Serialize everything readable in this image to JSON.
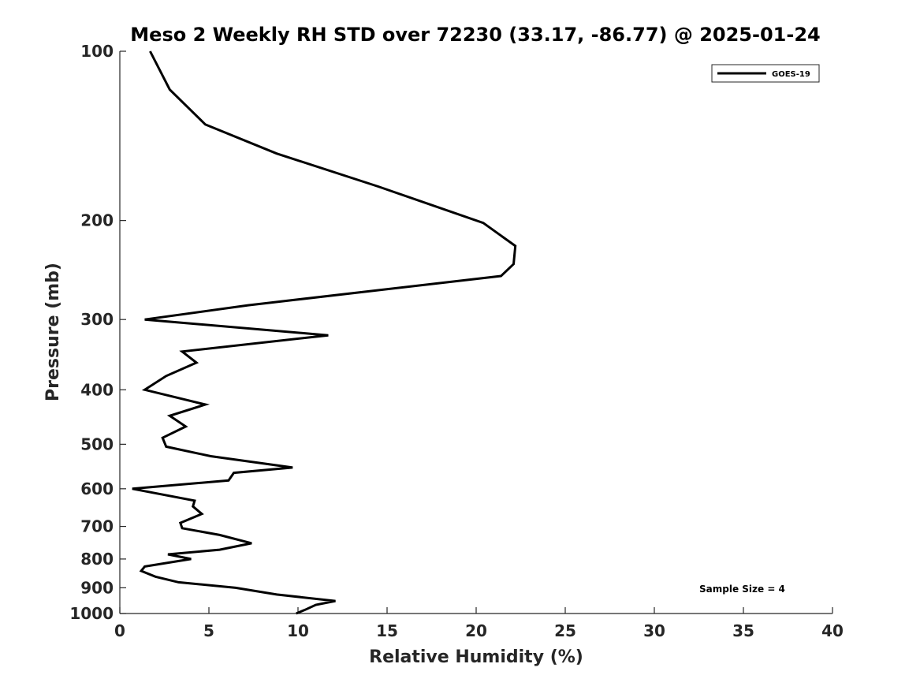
{
  "chart_data": {
    "type": "line",
    "title": "Meso 2 Weekly RH STD over 72230 (33.17, -86.77) @ 2025-01-24",
    "xlabel": "Relative Humidity (%)",
    "ylabel": "Pressure (mb)",
    "xlim": [
      0,
      40
    ],
    "ylim": [
      100,
      1000
    ],
    "yscale": "log",
    "y_reversed": true,
    "grid": false,
    "x_ticks": [
      "0",
      "5",
      "10",
      "15",
      "20",
      "25",
      "30",
      "35",
      "40"
    ],
    "y_ticks": [
      "100",
      "200",
      "300",
      "400",
      "500",
      "600",
      "700",
      "800",
      "900",
      "1000"
    ],
    "legend_position": "top-right",
    "series": [
      {
        "name": "GOES-19",
        "color": "#000000",
        "x": [
          1.7,
          2.8,
          4.8,
          8.8,
          14.5,
          20.4,
          22.2,
          22.1,
          21.4,
          7.2,
          1.4,
          11.7,
          3.5,
          4.3,
          2.6,
          1.4,
          4.8,
          2.8,
          3.7,
          2.4,
          2.6,
          5.1,
          9.7,
          6.4,
          6.1,
          0.7,
          4.2,
          4.1,
          4.6,
          3.4,
          3.5,
          5.6,
          7.4,
          5.6,
          2.7,
          4.0,
          1.4,
          1.2,
          2.0,
          3.3,
          6.5,
          8.8,
          12.1,
          11.0,
          10.4,
          9.9
        ],
        "y": [
          100,
          117,
          135,
          152,
          174,
          202,
          222,
          239,
          251,
          283,
          300,
          320,
          342,
          358,
          378,
          400,
          425,
          445,
          465,
          487,
          505,
          525,
          550,
          562,
          580,
          600,
          630,
          645,
          665,
          690,
          705,
          725,
          750,
          770,
          785,
          800,
          825,
          840,
          860,
          880,
          900,
          925,
          950,
          965,
          985,
          1000
        ]
      }
    ],
    "annotations": [
      "Sample Size = 4"
    ]
  }
}
